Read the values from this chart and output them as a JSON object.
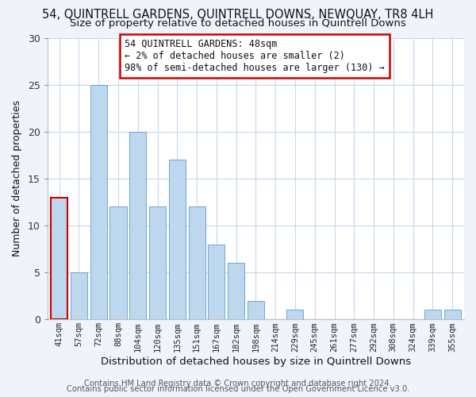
{
  "title": "54, QUINTRELL GARDENS, QUINTRELL DOWNS, NEWQUAY, TR8 4LH",
  "subtitle": "Size of property relative to detached houses in Quintrell Downs",
  "xlabel": "Distribution of detached houses by size in Quintrell Downs",
  "ylabel": "Number of detached properties",
  "footer_line1": "Contains HM Land Registry data © Crown copyright and database right 2024.",
  "footer_line2": "Contains public sector information licensed under the Open Government Licence v3.0.",
  "annotation_title": "54 QUINTRELL GARDENS: 48sqm",
  "annotation_line1": "← 2% of detached houses are smaller (2)",
  "annotation_line2": "98% of semi-detached houses are larger (130) →",
  "bar_labels": [
    "41sqm",
    "57sqm",
    "72sqm",
    "88sqm",
    "104sqm",
    "120sqm",
    "135sqm",
    "151sqm",
    "167sqm",
    "182sqm",
    "198sqm",
    "214sqm",
    "229sqm",
    "245sqm",
    "261sqm",
    "277sqm",
    "292sqm",
    "308sqm",
    "324sqm",
    "339sqm",
    "355sqm"
  ],
  "bar_values": [
    13,
    5,
    25,
    12,
    20,
    12,
    17,
    12,
    8,
    6,
    2,
    0,
    1,
    0,
    0,
    0,
    0,
    0,
    0,
    1,
    1
  ],
  "bar_color": "#bdd7ee",
  "red_outline_bars": [
    0
  ],
  "ylim": [
    0,
    30
  ],
  "yticks": [
    0,
    5,
    10,
    15,
    20,
    25,
    30
  ],
  "bg_color": "#f0f4fa",
  "plot_bg_color": "#ffffff",
  "grid_color": "#c8d8ee",
  "annotation_box_color": "#ffffff",
  "annotation_box_edge": "#cc0000",
  "title_fontsize": 10.5,
  "subtitle_fontsize": 9.5,
  "footer_fontsize": 7.2
}
